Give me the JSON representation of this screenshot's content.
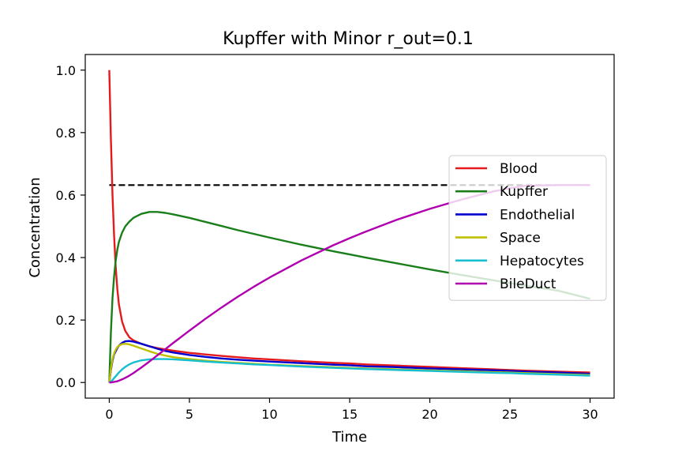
{
  "chart_data": {
    "type": "line",
    "title": "Kupffer with Minor r_out=0.1",
    "xlabel": "Time",
    "ylabel": "Concentration",
    "xlim": [
      -1.5,
      31.5
    ],
    "ylim": [
      -0.05,
      1.05
    ],
    "xticks": [
      0,
      5,
      10,
      15,
      20,
      25,
      30
    ],
    "xtick_labels": [
      "0",
      "5",
      "10",
      "15",
      "20",
      "25",
      "30"
    ],
    "yticks": [
      0.0,
      0.2,
      0.4,
      0.6,
      0.8,
      1.0
    ],
    "ytick_labels": [
      "0.0",
      "0.2",
      "0.4",
      "0.6",
      "0.8",
      "1.0"
    ],
    "grid": false,
    "legend_position": "center-right",
    "x": [
      0,
      0.1,
      0.2,
      0.3,
      0.4,
      0.5,
      0.6,
      0.8,
      1,
      1.25,
      1.5,
      2,
      2.5,
      3,
      3.5,
      4,
      5,
      6,
      7,
      8,
      9,
      10,
      12,
      14,
      15,
      16,
      18,
      20,
      22,
      24,
      25,
      26,
      28,
      30
    ],
    "series": [
      {
        "name": "Blood",
        "color": "#e41a1c",
        "style": "solid",
        "values": [
          1.0,
          0.78,
          0.6,
          0.47,
          0.37,
          0.3,
          0.25,
          0.195,
          0.165,
          0.145,
          0.135,
          0.124,
          0.116,
          0.11,
          0.106,
          0.102,
          0.095,
          0.09,
          0.085,
          0.081,
          0.077,
          0.074,
          0.068,
          0.063,
          0.061,
          0.058,
          0.054,
          0.05,
          0.046,
          0.042,
          0.04,
          0.038,
          0.035,
          0.032
        ]
      },
      {
        "name": "Kupffer",
        "color": "#1a7f1a",
        "style": "solid",
        "values": [
          0.0,
          0.16,
          0.27,
          0.34,
          0.39,
          0.425,
          0.45,
          0.48,
          0.5,
          0.515,
          0.527,
          0.54,
          0.546,
          0.546,
          0.543,
          0.538,
          0.527,
          0.514,
          0.501,
          0.488,
          0.476,
          0.464,
          0.441,
          0.42,
          0.41,
          0.4,
          0.381,
          0.362,
          0.344,
          0.327,
          0.318,
          0.31,
          0.294,
          0.268
        ]
      },
      {
        "name": "Endothelial",
        "color": "#0000d0",
        "style": "solid",
        "values": [
          0.0,
          0.04,
          0.07,
          0.09,
          0.1,
          0.11,
          0.118,
          0.127,
          0.132,
          0.133,
          0.131,
          0.124,
          0.116,
          0.108,
          0.101,
          0.096,
          0.088,
          0.082,
          0.077,
          0.073,
          0.07,
          0.067,
          0.062,
          0.057,
          0.055,
          0.052,
          0.049,
          0.045,
          0.042,
          0.039,
          0.037,
          0.035,
          0.032,
          0.028
        ]
      },
      {
        "name": "Space",
        "color": "#bfbf00",
        "style": "solid",
        "values": [
          0.0,
          0.045,
          0.075,
          0.093,
          0.105,
          0.113,
          0.118,
          0.123,
          0.124,
          0.122,
          0.118,
          0.109,
          0.1,
          0.092,
          0.086,
          0.081,
          0.075,
          0.07,
          0.066,
          0.063,
          0.06,
          0.057,
          0.053,
          0.049,
          0.047,
          0.045,
          0.042,
          0.039,
          0.036,
          0.033,
          0.032,
          0.03,
          0.027,
          0.024
        ]
      },
      {
        "name": "Hepatocytes",
        "color": "#17becf",
        "style": "solid",
        "values": [
          0.0,
          0.003,
          0.008,
          0.014,
          0.02,
          0.026,
          0.032,
          0.042,
          0.05,
          0.058,
          0.064,
          0.071,
          0.074,
          0.075,
          0.075,
          0.074,
          0.071,
          0.067,
          0.064,
          0.061,
          0.058,
          0.056,
          0.051,
          0.047,
          0.045,
          0.043,
          0.04,
          0.037,
          0.034,
          0.031,
          0.03,
          0.028,
          0.025,
          0.022
        ]
      },
      {
        "name": "BileDuct",
        "color": "#b000b0",
        "style": "solid",
        "values": [
          0.0,
          0.0,
          0.001,
          0.002,
          0.003,
          0.004,
          0.006,
          0.01,
          0.015,
          0.022,
          0.03,
          0.048,
          0.067,
          0.087,
          0.107,
          0.127,
          0.166,
          0.204,
          0.24,
          0.274,
          0.306,
          0.336,
          0.391,
          0.44,
          0.462,
          0.483,
          0.522,
          0.556,
          0.586,
          0.612,
          0.622,
          0.63,
          0.632,
          0.632
        ]
      }
    ],
    "reference_line": {
      "y": 0.632,
      "x_start": 0,
      "x_end": 30,
      "color": "#000000",
      "style": "dashed"
    }
  }
}
